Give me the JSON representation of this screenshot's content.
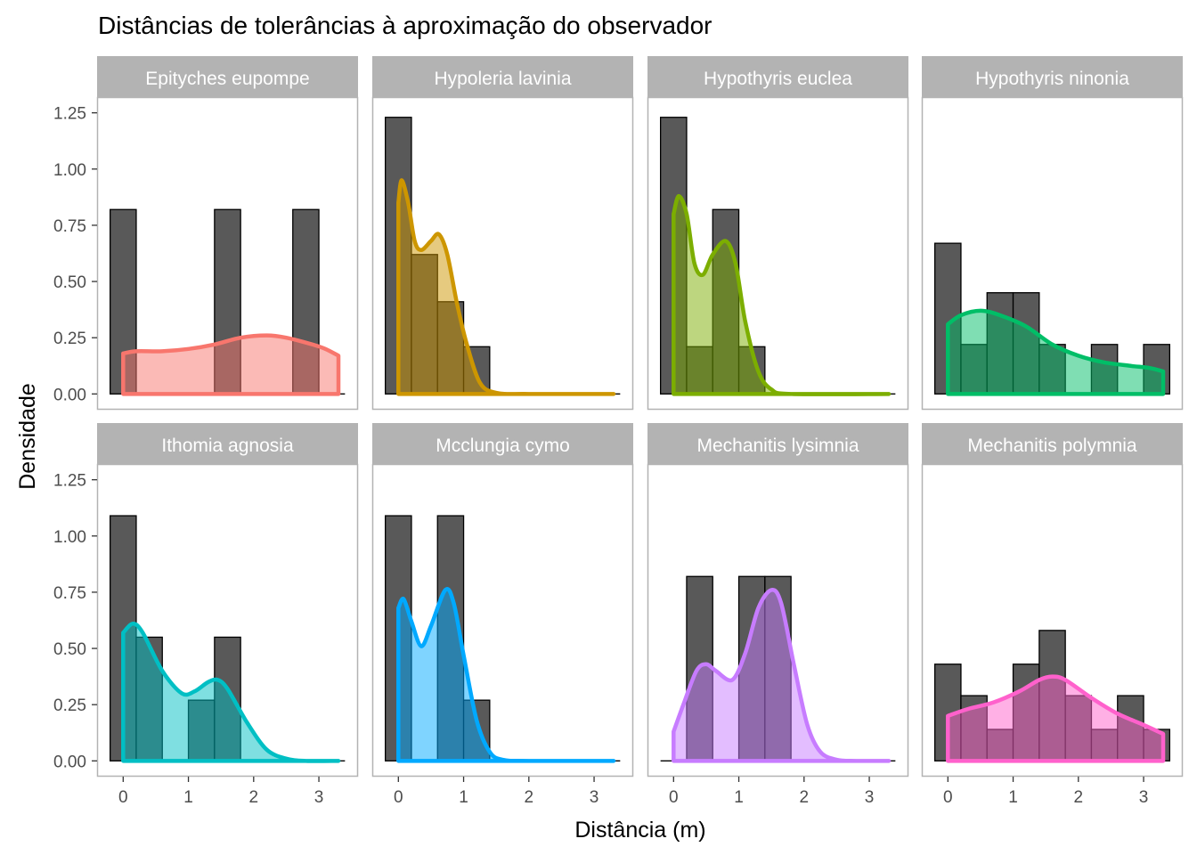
{
  "chart_data": {
    "type": "histogram+density",
    "title": "Distâncias de tolerâncias à aproximação do observador",
    "xlabel": "Distância (m)",
    "ylabel": "Densidade",
    "x_ticks": [
      "0",
      "1",
      "2",
      "3"
    ],
    "y_ticks": [
      "0.00",
      "0.25",
      "0.50",
      "0.75",
      "1.00",
      "1.25"
    ],
    "xlim": [
      -0.4,
      3.6
    ],
    "ylim": [
      -0.07,
      1.32
    ],
    "bin_width": 0.4,
    "grid": false,
    "panels": [
      {
        "name": "Epityches eupompe",
        "color": "#F8766D",
        "bins": [
          {
            "x0": -0.2,
            "h": 0.82
          },
          {
            "x0": 0.2,
            "h": 0
          },
          {
            "x0": 0.6,
            "h": 0
          },
          {
            "x0": 1.0,
            "h": 0
          },
          {
            "x0": 1.4,
            "h": 0.82
          },
          {
            "x0": 1.8,
            "h": 0
          },
          {
            "x0": 2.2,
            "h": 0
          },
          {
            "x0": 2.6,
            "h": 0.82
          },
          {
            "x0": 3.0,
            "h": 0
          }
        ],
        "density": [
          [
            0,
            0.18
          ],
          [
            0.2,
            0.19
          ],
          [
            0.6,
            0.19
          ],
          [
            1.0,
            0.2
          ],
          [
            1.4,
            0.22
          ],
          [
            1.8,
            0.25
          ],
          [
            2.2,
            0.26
          ],
          [
            2.5,
            0.25
          ],
          [
            2.9,
            0.22
          ],
          [
            3.1,
            0.2
          ],
          [
            3.3,
            0.17
          ]
        ]
      },
      {
        "name": "Hypoleria lavinia",
        "color": "#CD9600",
        "bins": [
          {
            "x0": -0.2,
            "h": 1.23
          },
          {
            "x0": 0.2,
            "h": 0.62
          },
          {
            "x0": 0.6,
            "h": 0.41
          },
          {
            "x0": 1.0,
            "h": 0.21
          },
          {
            "x0": 1.4,
            "h": 0
          },
          {
            "x0": 1.8,
            "h": 0
          },
          {
            "x0": 2.2,
            "h": 0
          },
          {
            "x0": 2.6,
            "h": 0
          },
          {
            "x0": 3.0,
            "h": 0
          }
        ],
        "density": [
          [
            0,
            0.85
          ],
          [
            0.05,
            0.95
          ],
          [
            0.15,
            0.85
          ],
          [
            0.25,
            0.68
          ],
          [
            0.35,
            0.64
          ],
          [
            0.5,
            0.68
          ],
          [
            0.62,
            0.71
          ],
          [
            0.75,
            0.62
          ],
          [
            0.9,
            0.4
          ],
          [
            1.05,
            0.22
          ],
          [
            1.25,
            0.05
          ],
          [
            1.5,
            0.005
          ],
          [
            2.0,
            0
          ],
          [
            3.3,
            0
          ]
        ]
      },
      {
        "name": "Hypothyris euclea",
        "color": "#7CAE00",
        "bins": [
          {
            "x0": -0.2,
            "h": 1.23
          },
          {
            "x0": 0.2,
            "h": 0.21
          },
          {
            "x0": 0.6,
            "h": 0.82
          },
          {
            "x0": 1.0,
            "h": 0.21
          },
          {
            "x0": 1.4,
            "h": 0
          },
          {
            "x0": 1.8,
            "h": 0
          },
          {
            "x0": 2.2,
            "h": 0
          },
          {
            "x0": 2.6,
            "h": 0
          },
          {
            "x0": 3.0,
            "h": 0
          }
        ],
        "density": [
          [
            0,
            0.8
          ],
          [
            0.08,
            0.88
          ],
          [
            0.2,
            0.8
          ],
          [
            0.32,
            0.58
          ],
          [
            0.45,
            0.53
          ],
          [
            0.6,
            0.62
          ],
          [
            0.8,
            0.68
          ],
          [
            0.95,
            0.58
          ],
          [
            1.1,
            0.32
          ],
          [
            1.3,
            0.1
          ],
          [
            1.5,
            0.02
          ],
          [
            1.8,
            0
          ],
          [
            3.3,
            0
          ]
        ]
      },
      {
        "name": "Hypothyris ninonia",
        "color": "#00BE67",
        "bins": [
          {
            "x0": -0.2,
            "h": 0.67
          },
          {
            "x0": 0.2,
            "h": 0.22
          },
          {
            "x0": 0.6,
            "h": 0.45
          },
          {
            "x0": 1.0,
            "h": 0.45
          },
          {
            "x0": 1.4,
            "h": 0.22
          },
          {
            "x0": 1.8,
            "h": 0
          },
          {
            "x0": 2.2,
            "h": 0.22
          },
          {
            "x0": 2.6,
            "h": 0
          },
          {
            "x0": 3.0,
            "h": 0.22
          }
        ],
        "density": [
          [
            0,
            0.31
          ],
          [
            0.2,
            0.35
          ],
          [
            0.5,
            0.37
          ],
          [
            0.8,
            0.35
          ],
          [
            1.2,
            0.3
          ],
          [
            1.6,
            0.22
          ],
          [
            2.0,
            0.17
          ],
          [
            2.4,
            0.14
          ],
          [
            2.8,
            0.125
          ],
          [
            3.1,
            0.115
          ],
          [
            3.3,
            0.1
          ]
        ]
      },
      {
        "name": "Ithomia agnosia",
        "color": "#00BFC4",
        "bins": [
          {
            "x0": -0.2,
            "h": 1.09
          },
          {
            "x0": 0.2,
            "h": 0.55
          },
          {
            "x0": 0.6,
            "h": 0
          },
          {
            "x0": 1.0,
            "h": 0.27
          },
          {
            "x0": 1.4,
            "h": 0.55
          },
          {
            "x0": 1.8,
            "h": 0
          },
          {
            "x0": 2.2,
            "h": 0
          },
          {
            "x0": 2.6,
            "h": 0
          },
          {
            "x0": 3.0,
            "h": 0
          }
        ],
        "density": [
          [
            0,
            0.57
          ],
          [
            0.15,
            0.61
          ],
          [
            0.3,
            0.57
          ],
          [
            0.6,
            0.4
          ],
          [
            0.9,
            0.3
          ],
          [
            1.1,
            0.31
          ],
          [
            1.3,
            0.35
          ],
          [
            1.45,
            0.36
          ],
          [
            1.6,
            0.32
          ],
          [
            1.9,
            0.17
          ],
          [
            2.2,
            0.05
          ],
          [
            2.5,
            0.01
          ],
          [
            2.8,
            0
          ],
          [
            3.3,
            0
          ]
        ]
      },
      {
        "name": "Mcclungia cymo",
        "color": "#00A9FF",
        "bins": [
          {
            "x0": -0.2,
            "h": 1.09
          },
          {
            "x0": 0.2,
            "h": 0
          },
          {
            "x0": 0.6,
            "h": 1.09
          },
          {
            "x0": 1.0,
            "h": 0.27
          },
          {
            "x0": 1.4,
            "h": 0
          },
          {
            "x0": 1.8,
            "h": 0
          },
          {
            "x0": 2.2,
            "h": 0
          },
          {
            "x0": 2.6,
            "h": 0
          },
          {
            "x0": 3.0,
            "h": 0
          }
        ],
        "density": [
          [
            0,
            0.68
          ],
          [
            0.08,
            0.72
          ],
          [
            0.2,
            0.62
          ],
          [
            0.35,
            0.51
          ],
          [
            0.5,
            0.6
          ],
          [
            0.72,
            0.76
          ],
          [
            0.85,
            0.7
          ],
          [
            1.0,
            0.47
          ],
          [
            1.2,
            0.18
          ],
          [
            1.4,
            0.04
          ],
          [
            1.6,
            0.005
          ],
          [
            2.0,
            0
          ],
          [
            3.3,
            0
          ]
        ]
      },
      {
        "name": "Mechanitis lysimnia",
        "color": "#C77CFF",
        "bins": [
          {
            "x0": -0.2,
            "h": 0
          },
          {
            "x0": 0.2,
            "h": 0.82
          },
          {
            "x0": 0.6,
            "h": 0
          },
          {
            "x0": 1.0,
            "h": 0.82
          },
          {
            "x0": 1.4,
            "h": 0.82
          },
          {
            "x0": 1.8,
            "h": 0
          },
          {
            "x0": 2.2,
            "h": 0
          },
          {
            "x0": 2.6,
            "h": 0
          },
          {
            "x0": 3.0,
            "h": 0
          }
        ],
        "density": [
          [
            0,
            0.13
          ],
          [
            0.15,
            0.25
          ],
          [
            0.35,
            0.4
          ],
          [
            0.5,
            0.43
          ],
          [
            0.65,
            0.4
          ],
          [
            0.9,
            0.36
          ],
          [
            1.1,
            0.48
          ],
          [
            1.3,
            0.68
          ],
          [
            1.5,
            0.76
          ],
          [
            1.65,
            0.7
          ],
          [
            1.85,
            0.42
          ],
          [
            2.05,
            0.16
          ],
          [
            2.25,
            0.04
          ],
          [
            2.5,
            0.005
          ],
          [
            2.8,
            0
          ],
          [
            3.3,
            0
          ]
        ]
      },
      {
        "name": "Mechanitis polymnia",
        "color": "#FF61CC",
        "bins": [
          {
            "x0": -0.2,
            "h": 0.43
          },
          {
            "x0": 0.2,
            "h": 0.29
          },
          {
            "x0": 0.6,
            "h": 0.14
          },
          {
            "x0": 1.0,
            "h": 0.43
          },
          {
            "x0": 1.4,
            "h": 0.58
          },
          {
            "x0": 1.8,
            "h": 0.29
          },
          {
            "x0": 2.2,
            "h": 0.14
          },
          {
            "x0": 2.6,
            "h": 0.29
          },
          {
            "x0": 3.0,
            "h": 0.14
          }
        ],
        "density": [
          [
            0,
            0.2
          ],
          [
            0.3,
            0.23
          ],
          [
            0.7,
            0.26
          ],
          [
            1.1,
            0.31
          ],
          [
            1.4,
            0.36
          ],
          [
            1.6,
            0.375
          ],
          [
            1.8,
            0.36
          ],
          [
            2.2,
            0.28
          ],
          [
            2.6,
            0.21
          ],
          [
            3.0,
            0.16
          ],
          [
            3.3,
            0.12
          ]
        ]
      }
    ]
  }
}
